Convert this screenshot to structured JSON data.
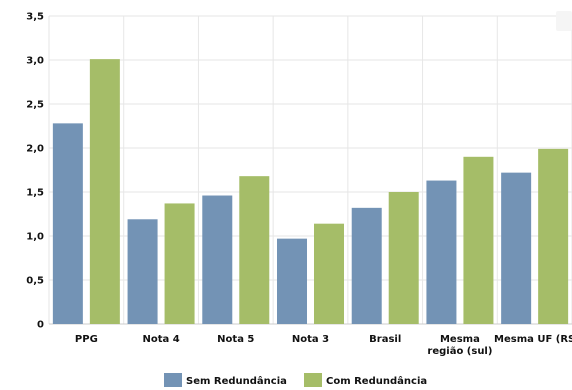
{
  "chart_data": {
    "type": "bar",
    "title": "",
    "xlabel": "",
    "ylabel": "",
    "categories": [
      [
        "PPG"
      ],
      [
        "Nota 4"
      ],
      [
        "Nota 5"
      ],
      [
        "Nota 3"
      ],
      [
        "Brasil"
      ],
      [
        "Mesma",
        "região (sul)"
      ],
      [
        "Mesma UF (RS"
      ]
    ],
    "series": [
      {
        "name": "Sem Redundância",
        "color": "#7393b5",
        "values": [
          2.28,
          1.19,
          1.46,
          0.97,
          1.32,
          1.63,
          1.72
        ]
      },
      {
        "name": "Com Redundância",
        "color": "#a5bd68",
        "values": [
          3.01,
          1.37,
          1.68,
          1.14,
          1.5,
          1.9,
          1.99
        ]
      }
    ],
    "ylim": [
      0,
      3.5
    ],
    "yticks": [
      "0",
      "0,5",
      "1,0",
      "1,5",
      "2,0",
      "2,5",
      "3,0",
      "3,5"
    ],
    "grid": true,
    "legend_position": "bottom-center"
  }
}
